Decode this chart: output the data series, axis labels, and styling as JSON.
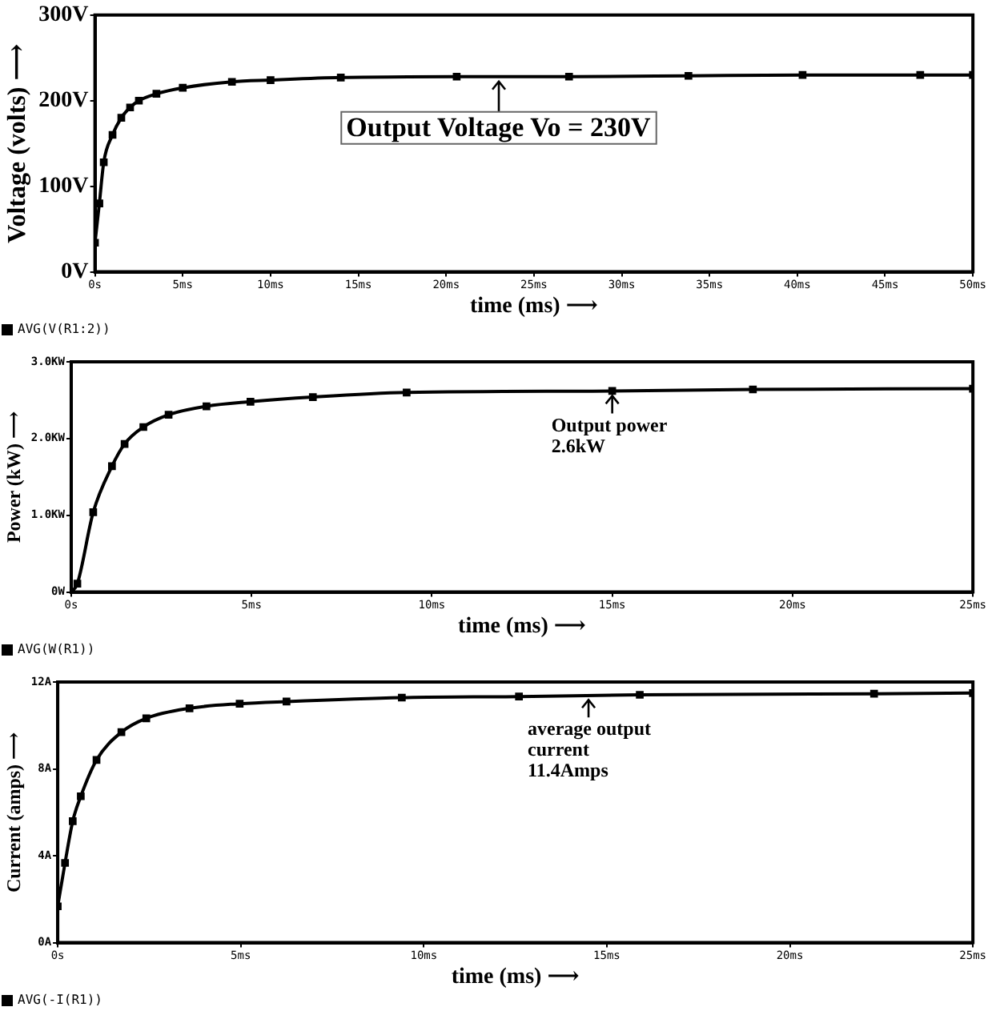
{
  "chart_data": [
    {
      "type": "line",
      "xlabel": "time (ms) ⟶",
      "ylabel": "Voltage (volts) ⟶",
      "xlim": [
        0,
        50
      ],
      "xticks": [
        {
          "value": 0,
          "label": "0s"
        },
        {
          "value": 5,
          "label": "5ms"
        },
        {
          "value": 10,
          "label": "10ms"
        },
        {
          "value": 15,
          "label": "15ms"
        },
        {
          "value": 20,
          "label": "20ms"
        },
        {
          "value": 25,
          "label": "25ms"
        },
        {
          "value": 30,
          "label": "30ms"
        },
        {
          "value": 35,
          "label": "35ms"
        },
        {
          "value": 40,
          "label": "40ms"
        },
        {
          "value": 45,
          "label": "45ms"
        },
        {
          "value": 50,
          "label": "50ms"
        }
      ],
      "ylim": [
        0,
        300
      ],
      "yticks": [
        {
          "value": 0,
          "label": "0V"
        },
        {
          "value": 100,
          "label": "100V"
        },
        {
          "value": 200,
          "label": "200V"
        },
        {
          "value": 300,
          "label": "300V"
        }
      ],
      "grid": false,
      "legend": "bottom left",
      "marker": "square",
      "line_style": "solid",
      "series": [
        {
          "name": "AVG(V(R1:2))",
          "color": "#000000",
          "x": [
            0,
            0.25,
            0.5,
            1,
            1.5,
            2,
            2.5,
            3.5,
            5,
            7.8,
            10,
            14,
            20.6,
            27,
            33.8,
            40.3,
            47,
            50
          ],
          "values": [
            34,
            80,
            128,
            160,
            180,
            192,
            200,
            208,
            215,
            222,
            224,
            227,
            228,
            228,
            229,
            230,
            230,
            230
          ]
        }
      ],
      "annotations": [
        {
          "text": "Output Voltage Vo = 230V",
          "x": 23,
          "y": 228
        }
      ]
    },
    {
      "type": "line",
      "xlabel": "time (ms) ⟶",
      "ylabel": "Power (kW) ⟶",
      "xlim": [
        0,
        25
      ],
      "xticks": [
        {
          "value": 0,
          "label": "0s"
        },
        {
          "value": 5,
          "label": "5ms"
        },
        {
          "value": 10,
          "label": "10ms"
        },
        {
          "value": 15,
          "label": "15ms"
        },
        {
          "value": 20,
          "label": "20ms"
        },
        {
          "value": 25,
          "label": "25ms"
        }
      ],
      "ylim": [
        0,
        3
      ],
      "yticks": [
        {
          "value": 0,
          "label": "0W"
        },
        {
          "value": 1,
          "label": "1.0KW"
        },
        {
          "value": 2,
          "label": "2.0KW"
        },
        {
          "value": 3,
          "label": "3.0KW"
        }
      ],
      "grid": false,
      "legend": "bottom left",
      "marker": "square",
      "line_style": "solid",
      "series": [
        {
          "name": "AVG(W(R1))",
          "color": "#000000",
          "x": [
            0,
            0.17,
            0.61,
            1.13,
            1.48,
            2,
            2.7,
            3.75,
            4.97,
            6.7,
            9.3,
            15,
            18.9,
            25
          ],
          "values": [
            0,
            0.11,
            1.04,
            1.64,
            1.93,
            2.15,
            2.31,
            2.42,
            2.48,
            2.54,
            2.6,
            2.62,
            2.64,
            2.65
          ]
        }
      ],
      "annotations": [
        {
          "text": "Output power\n2.6kW",
          "x": 15,
          "y": 2.62
        }
      ]
    },
    {
      "type": "line",
      "xlabel": "time (ms) ⟶",
      "ylabel": "Current (amps) ⟶",
      "xlim": [
        0,
        25
      ],
      "xticks": [
        {
          "value": 0,
          "label": "0s"
        },
        {
          "value": 5,
          "label": "5ms"
        },
        {
          "value": 10,
          "label": "10ms"
        },
        {
          "value": 15,
          "label": "15ms"
        },
        {
          "value": 20,
          "label": "20ms"
        },
        {
          "value": 25,
          "label": "25ms"
        }
      ],
      "ylim": [
        0,
        12
      ],
      "yticks": [
        {
          "value": 0,
          "label": "0A"
        },
        {
          "value": 4,
          "label": "4A"
        },
        {
          "value": 8,
          "label": "8A"
        },
        {
          "value": 12,
          "label": "12A"
        }
      ],
      "grid": false,
      "legend": "bottom left",
      "marker": "square",
      "line_style": "solid",
      "series": [
        {
          "name": "AVG(-I(R1))",
          "color": "#000000",
          "x": [
            0,
            0.2,
            0.41,
            0.63,
            1.06,
            1.74,
            2.42,
            3.6,
            4.97,
            6.25,
            9.4,
            12.6,
            15.9,
            22.3,
            25
          ],
          "values": [
            1.67,
            3.67,
            5.59,
            6.74,
            8.41,
            9.69,
            10.33,
            10.79,
            11,
            11.1,
            11.28,
            11.33,
            11.41,
            11.46,
            11.49
          ]
        }
      ],
      "annotations": [
        {
          "text": "average output\ncurrent\n11.4Amps",
          "x": 14.5,
          "y": 11.4
        }
      ]
    }
  ]
}
